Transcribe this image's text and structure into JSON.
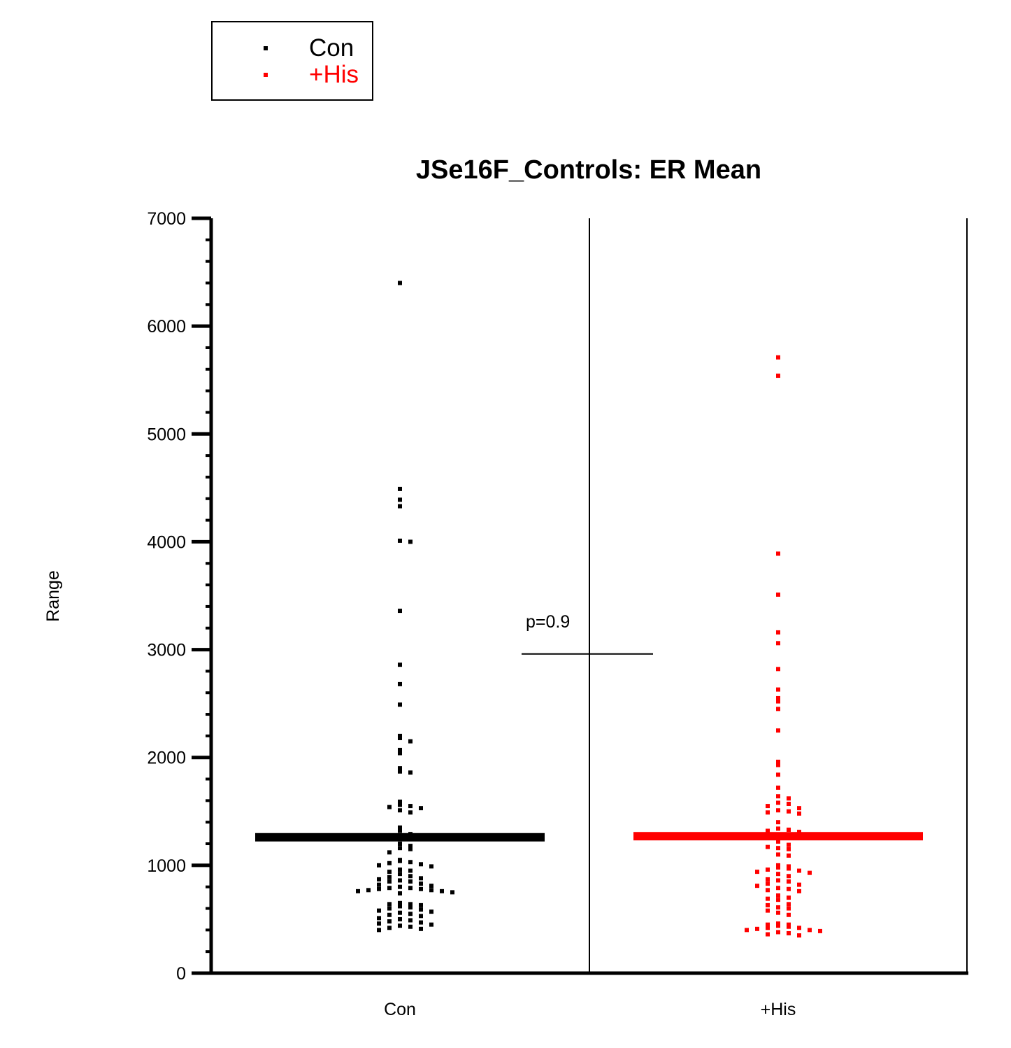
{
  "chart_data": {
    "type": "scatter",
    "title": "JSe16F_Controls: ER Mean",
    "ylabel": "Range",
    "xlabel": "",
    "ylim": [
      0,
      7000
    ],
    "yticks": [
      0,
      1000,
      2000,
      3000,
      4000,
      5000,
      6000,
      7000
    ],
    "categories": [
      "Con",
      "+His"
    ],
    "legend": {
      "placement": "top-left",
      "entries": [
        {
          "label": "Con",
          "color": "#000000"
        },
        {
          "label": "+His",
          "color": "#ff0000"
        }
      ]
    },
    "annotation": {
      "text": "p=0.9",
      "line_y": 2960
    },
    "series": [
      {
        "name": "Con",
        "color": "#000000",
        "mean": 1260,
        "values": [
          6400,
          4490,
          4390,
          4330,
          4010,
          4000,
          3360,
          2860,
          2680,
          2490,
          2200,
          2180,
          2150,
          2070,
          2040,
          1900,
          1870,
          1860,
          1590,
          1560,
          1550,
          1540,
          1530,
          1510,
          1490,
          1350,
          1320,
          1290,
          1200,
          1180,
          1160,
          1150,
          1120,
          1050,
          1040,
          1030,
          1020,
          1010,
          1000,
          990,
          960,
          950,
          940,
          920,
          900,
          890,
          880,
          870,
          860,
          850,
          850,
          830,
          820,
          810,
          800,
          790,
          790,
          780,
          780,
          770,
          770,
          760,
          760,
          750,
          740,
          650,
          640,
          640,
          630,
          620,
          610,
          600,
          590,
          580,
          570,
          560,
          550,
          540,
          530,
          510,
          500,
          490,
          480,
          470,
          460,
          450,
          440,
          430,
          420,
          410,
          400
        ]
      },
      {
        "name": "+His",
        "color": "#ff0000",
        "mean": 1270,
        "values": [
          5710,
          5540,
          3890,
          3510,
          3160,
          3060,
          2820,
          2630,
          2550,
          2520,
          2450,
          2250,
          1960,
          1930,
          1840,
          1720,
          1640,
          1620,
          1580,
          1570,
          1550,
          1530,
          1510,
          1500,
          1490,
          1480,
          1400,
          1340,
          1330,
          1320,
          1310,
          1230,
          1220,
          1190,
          1170,
          1160,
          1150,
          1100,
          1090,
          1000,
          990,
          980,
          970,
          960,
          950,
          940,
          930,
          920,
          900,
          870,
          860,
          850,
          830,
          820,
          810,
          790,
          780,
          770,
          760,
          720,
          700,
          690,
          680,
          640,
          630,
          610,
          600,
          580,
          560,
          540,
          460,
          450,
          450,
          440,
          430,
          420,
          420,
          410,
          400,
          400,
          390,
          380,
          370,
          360,
          350
        ]
      }
    ]
  }
}
